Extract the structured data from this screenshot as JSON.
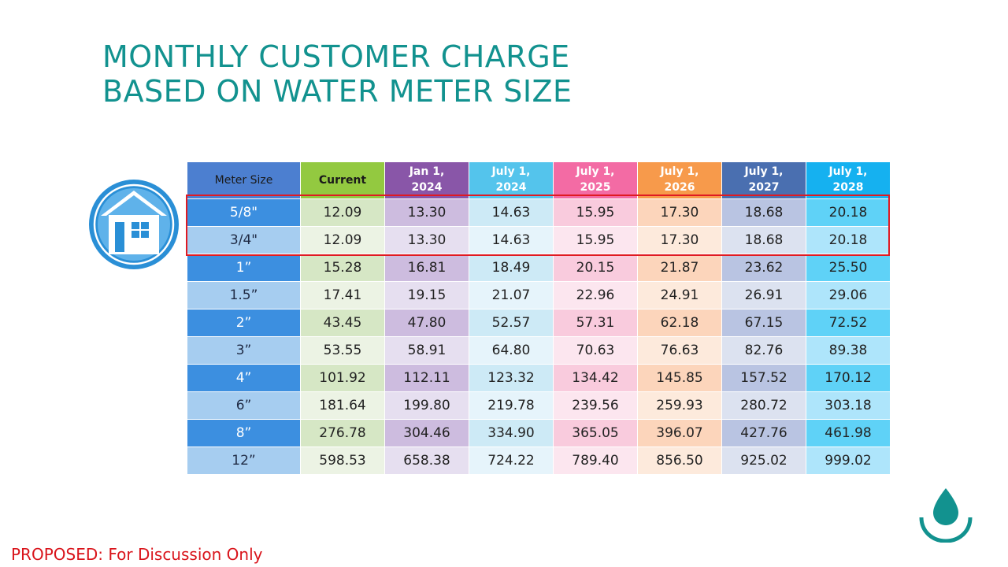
{
  "title": {
    "line1": "MONTHLY CUSTOMER CHARGE",
    "line2": "BASED ON WATER METER SIZE"
  },
  "table": {
    "headers": [
      "Meter Size",
      "Current",
      "Jan 1, 2024",
      "July 1, 2024",
      "July 1, 2025",
      "July 1, 2026",
      "July 1, 2027",
      "July 1, 2028"
    ],
    "header_lines": [
      [
        "Meter Size"
      ],
      [
        "Current"
      ],
      [
        "Jan 1,",
        "2024"
      ],
      [
        "July 1,",
        "2024"
      ],
      [
        "July 1,",
        "2025"
      ],
      [
        "July 1,",
        "2026"
      ],
      [
        "July 1,",
        "2027"
      ],
      [
        "July 1,",
        "2028"
      ]
    ],
    "rows": [
      [
        "5/8\"",
        "12.09",
        "13.30",
        "14.63",
        "15.95",
        "17.30",
        "18.68",
        "20.18"
      ],
      [
        "3/4\"",
        "12.09",
        "13.30",
        "14.63",
        "15.95",
        "17.30",
        "18.68",
        "20.18"
      ],
      [
        "1”",
        "15.28",
        "16.81",
        "18.49",
        "20.15",
        "21.87",
        "23.62",
        "25.50"
      ],
      [
        "1.5”",
        "17.41",
        "19.15",
        "21.07",
        "22.96",
        "24.91",
        "26.91",
        "29.06"
      ],
      [
        "2”",
        "43.45",
        "47.80",
        "52.57",
        "57.31",
        "62.18",
        "67.15",
        "72.52"
      ],
      [
        "3”",
        "53.55",
        "58.91",
        "64.80",
        "70.63",
        "76.63",
        "82.76",
        "89.38"
      ],
      [
        "4”",
        "101.92",
        "112.11",
        "123.32",
        "134.42",
        "145.85",
        "157.52",
        "170.12"
      ],
      [
        "6”",
        "181.64",
        "199.80",
        "219.78",
        "239.56",
        "259.93",
        "280.72",
        "303.18"
      ],
      [
        "8”",
        "276.78",
        "304.46",
        "334.90",
        "365.05",
        "396.07",
        "427.76",
        "461.98"
      ],
      [
        "12”",
        "598.53",
        "658.38",
        "724.22",
        "789.40",
        "856.50",
        "925.02",
        "999.02"
      ]
    ],
    "highlighted_rows": [
      "5/8\"",
      "3/4\""
    ]
  },
  "footer": "PROPOSED: For Discussion Only",
  "icons": {
    "left": "house-icon",
    "bottom_right": "water-drop-icon"
  },
  "colors": {
    "title": "#12928f",
    "highlight_border": "#e01a22",
    "footer": "#d9141b"
  }
}
